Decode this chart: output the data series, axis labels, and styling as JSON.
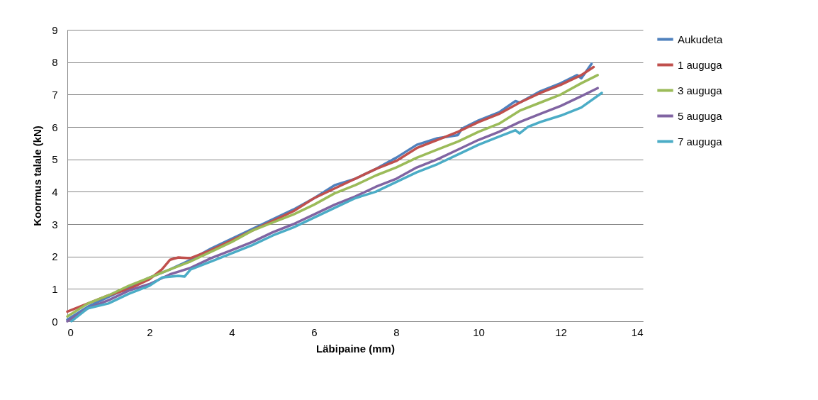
{
  "chart_data": {
    "type": "line",
    "xlabel": "Läbipaine (mm)",
    "ylabel": "Koormus talale (kN)",
    "xlim": [
      0,
      14
    ],
    "xticks": [
      0,
      2,
      4,
      6,
      8,
      10,
      12,
      14
    ],
    "ylim": [
      0,
      9
    ],
    "yticks": [
      0,
      1,
      2,
      3,
      4,
      5,
      6,
      7,
      8,
      9
    ],
    "grid": "y",
    "legend": "right",
    "marker": "none",
    "line_style": "solid",
    "series": [
      {
        "name": "Aukudeta",
        "color": "#4f81bd",
        "x": [
          0,
          0.5,
          1,
          1.5,
          2,
          2.5,
          3,
          3.5,
          4,
          4.5,
          5,
          5.5,
          6,
          6.5,
          7,
          7.5,
          8,
          8.5,
          9,
          9.5,
          9.6,
          10,
          10.5,
          10.9,
          11,
          11.5,
          12,
          12.4,
          12.5,
          12.75
        ],
        "values": [
          0.05,
          0.45,
          0.75,
          1.05,
          1.35,
          1.6,
          1.9,
          2.25,
          2.55,
          2.85,
          3.15,
          3.45,
          3.8,
          4.2,
          4.4,
          4.7,
          5.05,
          5.45,
          5.65,
          5.75,
          5.95,
          6.2,
          6.45,
          6.8,
          6.75,
          7.1,
          7.35,
          7.6,
          7.5,
          7.95
        ]
      },
      {
        "name": "1 auguga",
        "color": "#c0504d",
        "x": [
          0,
          0.5,
          1,
          1.5,
          2,
          2.3,
          2.5,
          2.7,
          3,
          3.5,
          4,
          4.5,
          5,
          5.5,
          6,
          6.5,
          7,
          7.5,
          8,
          8.5,
          9,
          9.5,
          10,
          10.5,
          11,
          11.5,
          12,
          12.5,
          12.8
        ],
        "values": [
          0.3,
          0.55,
          0.8,
          1.0,
          1.3,
          1.6,
          1.9,
          1.97,
          1.95,
          2.2,
          2.5,
          2.8,
          3.1,
          3.4,
          3.8,
          4.1,
          4.4,
          4.7,
          4.95,
          5.35,
          5.6,
          5.85,
          6.15,
          6.4,
          6.75,
          7.05,
          7.3,
          7.6,
          7.85
        ]
      },
      {
        "name": "3 auguga",
        "color": "#9bbb59",
        "x": [
          0,
          0.5,
          1,
          1.5,
          2,
          2.5,
          3,
          3.5,
          4,
          4.5,
          5,
          5.5,
          6,
          6.5,
          7,
          7.5,
          8,
          8.5,
          9,
          9.5,
          10,
          10.5,
          11,
          11.5,
          12,
          12.5,
          12.9
        ],
        "values": [
          0.15,
          0.55,
          0.8,
          1.1,
          1.35,
          1.6,
          1.85,
          2.15,
          2.45,
          2.8,
          3.05,
          3.3,
          3.6,
          3.95,
          4.2,
          4.5,
          4.75,
          5.05,
          5.3,
          5.55,
          5.85,
          6.1,
          6.5,
          6.75,
          7.0,
          7.35,
          7.6
        ]
      },
      {
        "name": "5 auguga",
        "color": "#8064a2",
        "x": [
          0,
          0.5,
          1,
          1.5,
          2,
          2.5,
          3,
          3.5,
          4,
          4.5,
          5,
          5.5,
          6,
          6.5,
          7,
          7.5,
          8,
          8.5,
          9,
          9.5,
          10,
          10.5,
          11,
          11.5,
          12,
          12.5,
          12.9
        ],
        "values": [
          0.0,
          0.4,
          0.65,
          0.95,
          1.15,
          1.45,
          1.65,
          1.95,
          2.2,
          2.45,
          2.75,
          3.0,
          3.3,
          3.6,
          3.85,
          4.15,
          4.4,
          4.75,
          5.0,
          5.3,
          5.6,
          5.85,
          6.15,
          6.4,
          6.65,
          6.95,
          7.2
        ]
      },
      {
        "name": "7 auguga",
        "color": "#4bacc6",
        "x": [
          0.1,
          0.5,
          1,
          1.5,
          2,
          2.3,
          2.7,
          2.85,
          3,
          3.5,
          4,
          4.5,
          5,
          5.5,
          6,
          6.5,
          7,
          7.5,
          8,
          8.5,
          9,
          9.5,
          10,
          10.5,
          10.9,
          11,
          11.2,
          11.5,
          12,
          12.5,
          13
        ],
        "values": [
          0.0,
          0.4,
          0.55,
          0.85,
          1.1,
          1.35,
          1.4,
          1.38,
          1.6,
          1.85,
          2.1,
          2.35,
          2.65,
          2.9,
          3.2,
          3.5,
          3.8,
          4.0,
          4.3,
          4.6,
          4.85,
          5.15,
          5.45,
          5.7,
          5.9,
          5.8,
          6.0,
          6.15,
          6.35,
          6.6,
          7.05
        ]
      }
    ]
  }
}
